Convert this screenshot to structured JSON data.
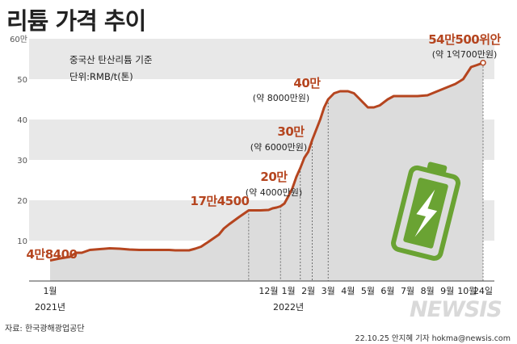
{
  "title": "리튬 가격 추이",
  "note_line1": "중국산 탄산리튬 기준",
  "note_line2": "단위:RMB/t(톤)",
  "source": "자료: 한국광해광업공단",
  "credit": "22.10.25 안지혜 기자 hokma@newsis.com",
  "logo": "NEWSIS",
  "colors": {
    "line": "#b5451f",
    "area": "#dcdcdc",
    "band": "#e8e8e8",
    "battery": "#6aa333"
  },
  "chart_data": {
    "type": "area",
    "title": "리튬 가격 추이",
    "ylabel": "단위:RMB/t(톤)",
    "ylim": [
      0,
      60
    ],
    "yticks": [
      {
        "value": 10,
        "label": "10"
      },
      {
        "value": 20,
        "label": "20"
      },
      {
        "value": 30,
        "label": "30"
      },
      {
        "value": 40,
        "label": "40"
      },
      {
        "value": 50,
        "label": "50"
      },
      {
        "value": 60,
        "label": "60만"
      }
    ],
    "xlim": [
      0,
      21.8
    ],
    "xticks": [
      {
        "x": 0,
        "label": "1월"
      },
      {
        "x": 11,
        "label": "12월"
      },
      {
        "x": 12,
        "label": "1월"
      },
      {
        "x": 13,
        "label": "2월"
      },
      {
        "x": 14,
        "label": "3월"
      },
      {
        "x": 15,
        "label": "4월"
      },
      {
        "x": 16,
        "label": "5월"
      },
      {
        "x": 17,
        "label": "6월"
      },
      {
        "x": 18,
        "label": "7월"
      },
      {
        "x": 19,
        "label": "8월"
      },
      {
        "x": 20,
        "label": "9월"
      },
      {
        "x": 21,
        "label": "10월"
      },
      {
        "x": 21.8,
        "label": "24일"
      }
    ],
    "year_labels": [
      {
        "x": 0,
        "label": "2021년"
      },
      {
        "x": 12,
        "label": "2022년"
      }
    ],
    "series": [
      {
        "x": [
          0,
          0.5,
          1,
          1.3,
          1.6,
          2.0,
          2.5,
          3.0,
          3.5,
          4.0,
          4.5,
          5.0,
          5.5,
          6.0,
          6.3,
          6.6,
          7.0,
          7.3,
          7.6,
          8.0,
          8.5,
          8.75,
          9.0,
          9.5,
          10.0,
          10.3,
          10.6,
          11.0,
          11.2,
          11.4,
          11.6,
          11.8,
          12.0,
          12.2,
          12.4,
          12.6,
          12.8,
          13.0,
          13.2,
          13.4,
          13.6,
          13.8,
          14.0,
          14.3,
          14.6,
          15.0,
          15.3,
          15.6,
          16.0,
          16.3,
          16.6,
          17.0,
          17.3,
          17.6,
          18.0,
          18.5,
          19.0,
          19.5,
          20.0,
          20.4,
          20.8,
          21.0,
          21.2,
          21.5,
          21.8
        ],
        "y": [
          5.1,
          5.6,
          6.0,
          7.0,
          7.0,
          7.7,
          7.9,
          8.1,
          8.0,
          7.8,
          7.7,
          7.7,
          7.7,
          7.7,
          7.6,
          7.6,
          7.6,
          8.0,
          8.5,
          9.8,
          11.5,
          13.0,
          14.0,
          15.8,
          17.5,
          17.5,
          17.5,
          17.6,
          18.0,
          18.2,
          18.5,
          19.2,
          21.0,
          23.0,
          25.8,
          28.0,
          30.5,
          32.0,
          35.0,
          37.5,
          40.0,
          43.0,
          45.0,
          46.5,
          47.0,
          47.0,
          46.5,
          45.0,
          43.0,
          43.0,
          43.5,
          45.0,
          45.8,
          45.8,
          45.8,
          45.8,
          46.0,
          47.0,
          48.0,
          48.8,
          50.0,
          51.5,
          53.0,
          53.5,
          54.05
        ]
      }
    ],
    "annotations": [
      {
        "label": "4만8400",
        "sub": ""
      },
      {
        "label": "17만4500",
        "sub": ""
      },
      {
        "label": "20만",
        "sub": "(약 4000만원)"
      },
      {
        "label": "30만",
        "sub": "(약 6000만원)"
      },
      {
        "label": "40만",
        "sub": "(약 8000만원)"
      },
      {
        "label": "54만500위안",
        "sub": "(약 1억700만원)"
      }
    ]
  }
}
